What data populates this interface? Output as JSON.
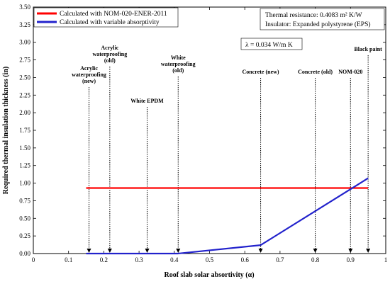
{
  "chart_data": {
    "type": "line",
    "title": "",
    "xlabel": "Roof slab solar absortivity  (α)",
    "ylabel": "Required thermal insulation thickness (in)",
    "xlim": [
      0,
      1
    ],
    "ylim": [
      0,
      3.5
    ],
    "xticks": [
      "0",
      "0.1",
      "0.2",
      "0.3",
      "0.4",
      "0.5",
      "0.6",
      "0.7",
      "0.8",
      "0.9",
      "1"
    ],
    "yticks": [
      "0.00",
      "0.25",
      "0.50",
      "0.75",
      "1.00",
      "1.25",
      "1.50",
      "1.75",
      "2.00",
      "2.25",
      "2.50",
      "2.75",
      "3.00",
      "3.25",
      "3.50"
    ],
    "grid": false,
    "legend_position": "top-left",
    "series": [
      {
        "name": "Calculated with NOM-020-ENER-2011",
        "color": "#ff0000",
        "x": [
          0.15,
          0.95
        ],
        "y": [
          0.93,
          0.93
        ]
      },
      {
        "name": "Calculated with variable absorptivity",
        "color": "#2222cc",
        "x": [
          0.15,
          0.41,
          0.645,
          0.95
        ],
        "y": [
          0.0,
          0.0,
          0.12,
          1.07
        ]
      }
    ],
    "info_box": {
      "line1": "Thermal resistance:  0.4083 m² K/W",
      "line2": "Insulator:  Expanded polystyrene  (EPS)"
    },
    "lambda_box": "λ  =  0.034  W/m K",
    "materials": [
      {
        "x": 0.158,
        "lines": [
          "Acrylic",
          "waterproofing",
          "(new)"
        ]
      },
      {
        "x": 0.217,
        "lines": [
          "Acrylic",
          "waterproofing",
          "(old)"
        ]
      },
      {
        "x": 0.323,
        "lines": [
          "White EPDM"
        ]
      },
      {
        "x": 0.411,
        "lines": [
          "White",
          "waterproofing",
          "(old)"
        ]
      },
      {
        "x": 0.645,
        "lines": [
          "Concrete (new)"
        ]
      },
      {
        "x": 0.8,
        "lines": [
          "Concrete (old)"
        ]
      },
      {
        "x": 0.9,
        "lines": [
          "NOM-020"
        ]
      },
      {
        "x": 0.95,
        "lines": [
          "Black paint"
        ]
      }
    ]
  }
}
